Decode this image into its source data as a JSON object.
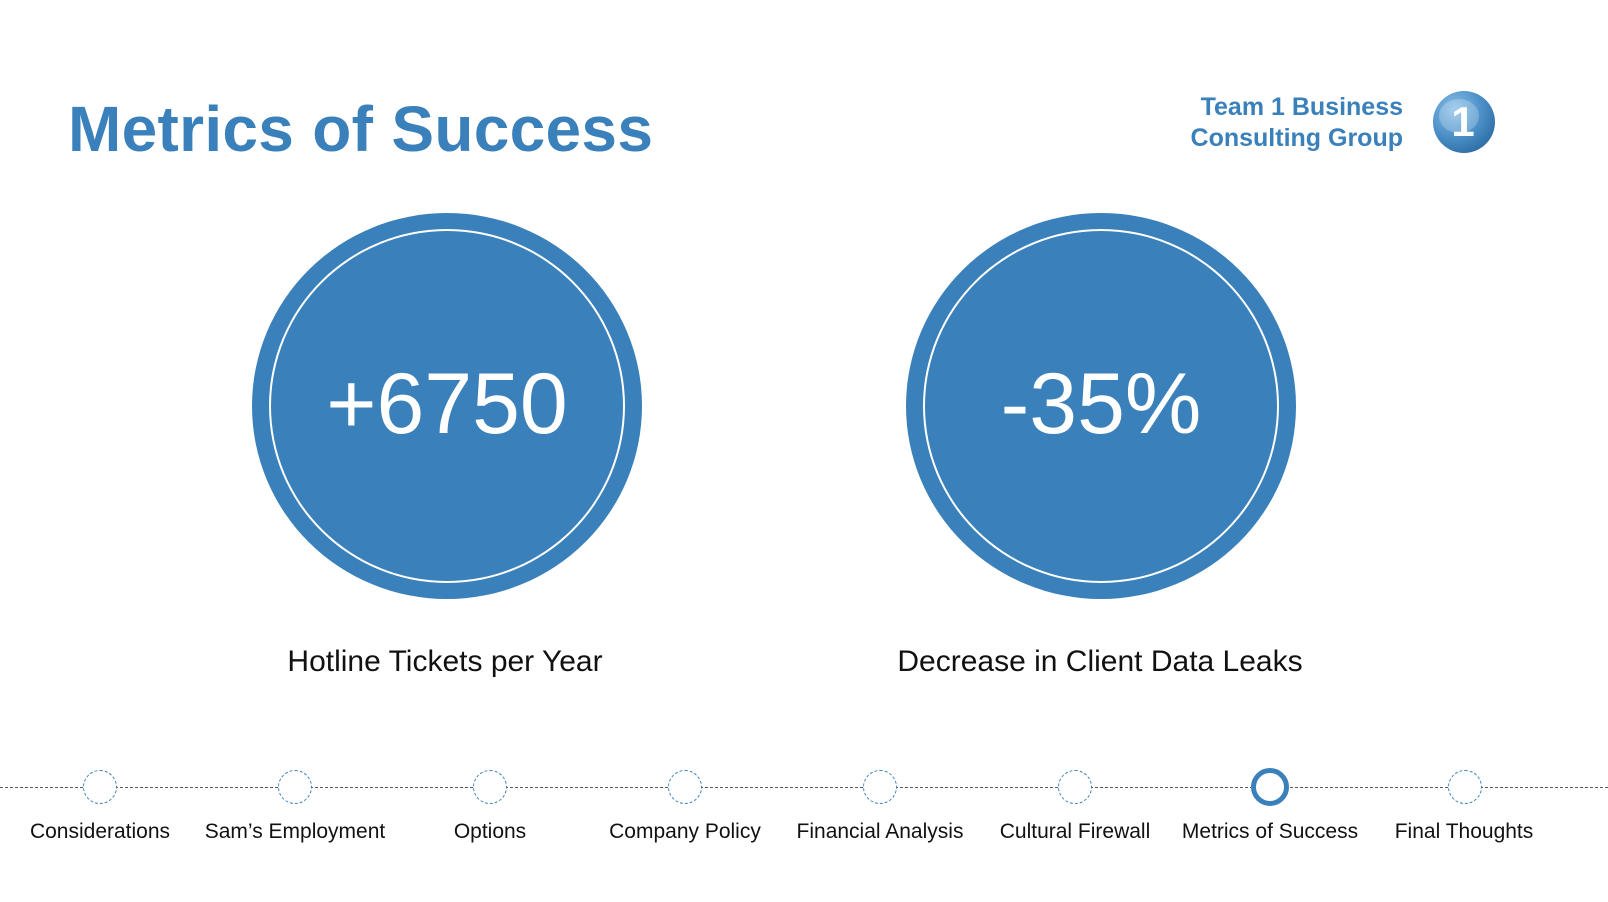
{
  "slide": {
    "title": "Metrics of Success"
  },
  "brand": {
    "line1": "Team 1 Business",
    "line2": "Consulting Group",
    "logo_text": "1",
    "accent_color": "#3a80ba"
  },
  "metrics": [
    {
      "value": "+6750",
      "label": "Hotline Tickets per Year"
    },
    {
      "value": "-35%",
      "label": "Decrease in Client Data Leaks"
    }
  ],
  "timeline": {
    "active_index": 6,
    "items": [
      {
        "label": "Considerations"
      },
      {
        "label": "Sam’s Employment"
      },
      {
        "label": "Options"
      },
      {
        "label": "Company Policy"
      },
      {
        "label": "Financial Analysis"
      },
      {
        "label": "Cultural Firewall"
      },
      {
        "label": "Metrics of Success"
      },
      {
        "label": "Final Thoughts"
      }
    ]
  }
}
